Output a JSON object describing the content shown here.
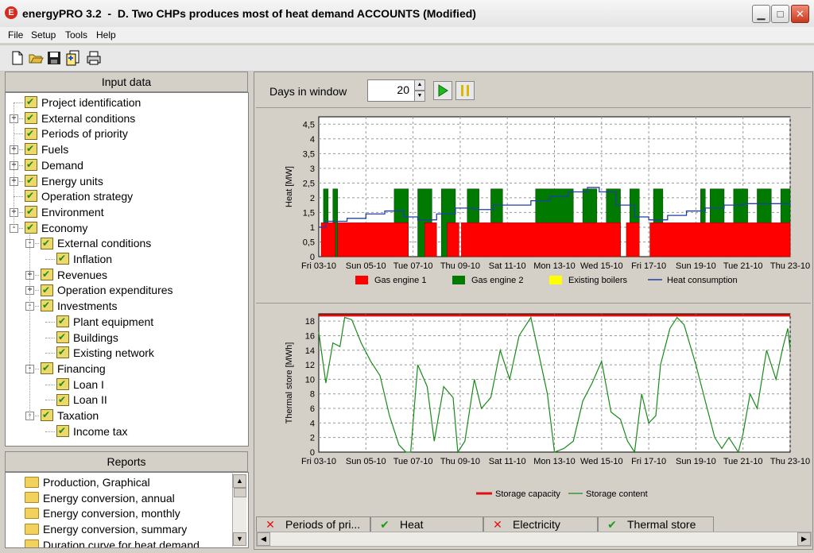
{
  "window": {
    "app_icon": "E",
    "title": "energyPRO 3.2  -  D. Two CHPs produces most of heat demand ACCOUNTS (Modified)",
    "min": "▁",
    "max": "□",
    "close": "✕"
  },
  "menu": [
    "File",
    "Setup",
    "Tools",
    "Help"
  ],
  "toolbar_icons": [
    "new-icon",
    "open-icon",
    "save-icon",
    "copy-icon",
    "print-icon"
  ],
  "input_panel": {
    "title": "Input data",
    "items": [
      {
        "label": "Project identification",
        "level": 0,
        "expander": ""
      },
      {
        "label": "External conditions",
        "level": 0,
        "expander": "+"
      },
      {
        "label": "Periods of priority",
        "level": 0,
        "expander": ""
      },
      {
        "label": "Fuels",
        "level": 0,
        "expander": "+"
      },
      {
        "label": "Demand",
        "level": 0,
        "expander": "+"
      },
      {
        "label": "Energy units",
        "level": 0,
        "expander": "+"
      },
      {
        "label": "Operation strategy",
        "level": 0,
        "expander": ""
      },
      {
        "label": "Environment",
        "level": 0,
        "expander": "+"
      },
      {
        "label": "Economy",
        "level": 0,
        "expander": "-"
      },
      {
        "label": "External conditions",
        "level": 1,
        "expander": "-"
      },
      {
        "label": "Inflation",
        "level": 2,
        "expander": ""
      },
      {
        "label": "Revenues",
        "level": 1,
        "expander": "+"
      },
      {
        "label": "Operation expenditures",
        "level": 1,
        "expander": "+"
      },
      {
        "label": "Investments",
        "level": 1,
        "expander": "-"
      },
      {
        "label": "Plant equipment",
        "level": 2,
        "expander": ""
      },
      {
        "label": "Buildings",
        "level": 2,
        "expander": ""
      },
      {
        "label": "Existing network",
        "level": 2,
        "expander": ""
      },
      {
        "label": "Financing",
        "level": 1,
        "expander": "-"
      },
      {
        "label": "Loan I",
        "level": 2,
        "expander": ""
      },
      {
        "label": "Loan II",
        "level": 2,
        "expander": ""
      },
      {
        "label": "Taxation",
        "level": 1,
        "expander": "-"
      },
      {
        "label": "Income tax",
        "level": 2,
        "expander": ""
      }
    ]
  },
  "reports_panel": {
    "title": "Reports",
    "items": [
      "Production, Graphical",
      "Energy conversion, annual",
      "Energy conversion, monthly",
      "Energy conversion, summary",
      "Duration curve for heat demand"
    ]
  },
  "days": {
    "label": "Days in window",
    "value": "20",
    "play_icon": "play-icon",
    "pause_icon": "pause-icon"
  },
  "colors": {
    "gas1": "#ff0000",
    "gas2": "#007a00",
    "boilers": "#ffff00",
    "heat_line": "#1f3fa8",
    "storage_cap": "#e01010",
    "storage_content": "#1a8a1a"
  },
  "chart_data": [
    {
      "type": "area",
      "ylabel": "Heat [MW]",
      "ylim": [
        0,
        4.75
      ],
      "yticks": [
        "0",
        "0,5",
        "1",
        "1,5",
        "2",
        "2,5",
        "3",
        "3,5",
        "4",
        "4,5"
      ],
      "categories": [
        "Fri 03-10",
        "Sun 05-10",
        "Tue 07-10",
        "Thu 09-10",
        "Sat 11-10",
        "Mon 13-10",
        "Wed 15-10",
        "Fri 17-10",
        "Sun 19-10",
        "Tue 21-10",
        "Thu 23-10"
      ],
      "days": 20,
      "grid": true,
      "legend": [
        "Gas engine 1",
        "Gas engine 2",
        "Existing boilers",
        "Heat consumption"
      ],
      "gas_engine_1": [
        [
          0.1,
          0.7,
          1.15
        ],
        [
          0.8,
          3.8,
          1.15
        ],
        [
          4.5,
          5.0,
          1.15
        ],
        [
          5.45,
          5.95,
          1.15
        ],
        [
          6.05,
          12.8,
          1.15
        ],
        [
          13.05,
          13.6,
          1.15
        ],
        [
          14.05,
          20.0,
          1.15
        ]
      ],
      "gas_engine_2": [
        [
          0.2,
          0.4,
          2.3
        ],
        [
          0.6,
          0.8,
          2.3
        ],
        [
          3.2,
          3.8,
          2.3
        ],
        [
          4.2,
          4.8,
          2.3
        ],
        [
          5.2,
          5.8,
          2.3
        ],
        [
          6.3,
          6.8,
          2.3
        ],
        [
          7.3,
          7.8,
          2.3
        ],
        [
          9.2,
          10.8,
          2.3
        ],
        [
          11.2,
          11.8,
          2.3
        ],
        [
          12.2,
          12.8,
          2.3
        ],
        [
          13.2,
          13.6,
          2.3
        ],
        [
          14.2,
          14.6,
          2.3
        ],
        [
          16.2,
          16.4,
          2.3
        ],
        [
          16.6,
          17.2,
          2.3
        ],
        [
          17.6,
          18.2,
          2.3
        ],
        [
          18.6,
          19.2,
          2.3
        ],
        [
          19.6,
          20.0,
          2.3
        ]
      ],
      "heat_consumption": [
        [
          0,
          1.0
        ],
        [
          0.3,
          1.2
        ],
        [
          1.2,
          1.3
        ],
        [
          2.0,
          1.45
        ],
        [
          2.8,
          1.55
        ],
        [
          3.6,
          1.35
        ],
        [
          4.2,
          1.25
        ],
        [
          5.0,
          1.45
        ],
        [
          5.8,
          1.65
        ],
        [
          6.6,
          1.6
        ],
        [
          7.4,
          1.75
        ],
        [
          8.2,
          1.75
        ],
        [
          9.0,
          1.9
        ],
        [
          9.8,
          2.05
        ],
        [
          10.6,
          2.2
        ],
        [
          11.4,
          2.35
        ],
        [
          11.9,
          2.2
        ],
        [
          12.6,
          1.75
        ],
        [
          13.4,
          1.35
        ],
        [
          14.0,
          1.25
        ],
        [
          14.8,
          1.4
        ],
        [
          15.6,
          1.55
        ],
        [
          16.4,
          1.65
        ],
        [
          17.2,
          1.75
        ],
        [
          18.0,
          1.8
        ],
        [
          18.8,
          1.8
        ],
        [
          19.6,
          1.8
        ],
        [
          20.0,
          1.75
        ]
      ]
    },
    {
      "type": "line",
      "ylabel": "Thermal store [MWh]",
      "ylim": [
        0,
        19
      ],
      "yticks": [
        "0",
        "2",
        "4",
        "6",
        "8",
        "10",
        "12",
        "14",
        "16",
        "18"
      ],
      "categories": [
        "Fri 03-10",
        "Sun 05-10",
        "Tue 07-10",
        "Thu 09-10",
        "Sat 11-10",
        "Mon 13-10",
        "Wed 15-10",
        "Fri 17-10",
        "Sun 19-10",
        "Tue 21-10",
        "Thu 23-10"
      ],
      "days": 20,
      "grid": true,
      "legend": [
        "Storage capacity",
        "Storage content"
      ],
      "storage_capacity": 18.8,
      "storage_content": [
        [
          0,
          16.5
        ],
        [
          0.3,
          9.5
        ],
        [
          0.6,
          15
        ],
        [
          0.9,
          14.5
        ],
        [
          1.1,
          18.5
        ],
        [
          1.4,
          18.2
        ],
        [
          1.8,
          15
        ],
        [
          2.2,
          12.5
        ],
        [
          2.6,
          10.5
        ],
        [
          3.0,
          5
        ],
        [
          3.4,
          1
        ],
        [
          3.7,
          0
        ],
        [
          3.9,
          0
        ],
        [
          4.2,
          12
        ],
        [
          4.6,
          9
        ],
        [
          4.9,
          1.5
        ],
        [
          5.3,
          9
        ],
        [
          5.7,
          7.5
        ],
        [
          5.9,
          0
        ],
        [
          6.2,
          1.5
        ],
        [
          6.6,
          10
        ],
        [
          6.9,
          6
        ],
        [
          7.3,
          7.5
        ],
        [
          7.7,
          14
        ],
        [
          8.1,
          10
        ],
        [
          8.5,
          16
        ],
        [
          9.0,
          18.5
        ],
        [
          9.3,
          14
        ],
        [
          9.7,
          8
        ],
        [
          10.0,
          0
        ],
        [
          10.4,
          0.5
        ],
        [
          10.8,
          1.5
        ],
        [
          11.2,
          7
        ],
        [
          11.6,
          9.5
        ],
        [
          12.0,
          12.5
        ],
        [
          12.4,
          5.5
        ],
        [
          12.8,
          4.5
        ],
        [
          13.1,
          1.5
        ],
        [
          13.4,
          0
        ],
        [
          13.7,
          8
        ],
        [
          14.0,
          4
        ],
        [
          14.3,
          5
        ],
        [
          14.5,
          12
        ],
        [
          14.9,
          17
        ],
        [
          15.2,
          18.5
        ],
        [
          15.5,
          17.5
        ],
        [
          16.0,
          12
        ],
        [
          16.4,
          7
        ],
        [
          16.8,
          2
        ],
        [
          17.1,
          0.5
        ],
        [
          17.4,
          2
        ],
        [
          17.8,
          0
        ],
        [
          18.0,
          2.5
        ],
        [
          18.3,
          8
        ],
        [
          18.6,
          6
        ],
        [
          19.0,
          14
        ],
        [
          19.4,
          10
        ],
        [
          19.7,
          14.5
        ],
        [
          19.9,
          17
        ],
        [
          20.0,
          14
        ]
      ]
    }
  ],
  "tabs": [
    {
      "label": "Periods of pri...",
      "mark": "✕",
      "mark_color": "#e01010"
    },
    {
      "label": "Heat",
      "mark": "✔",
      "mark_color": "#1e9a1e"
    },
    {
      "label": "Electricity",
      "mark": "✕",
      "mark_color": "#e01010"
    },
    {
      "label": "Thermal store",
      "mark": "✔",
      "mark_color": "#1e9a1e"
    }
  ]
}
